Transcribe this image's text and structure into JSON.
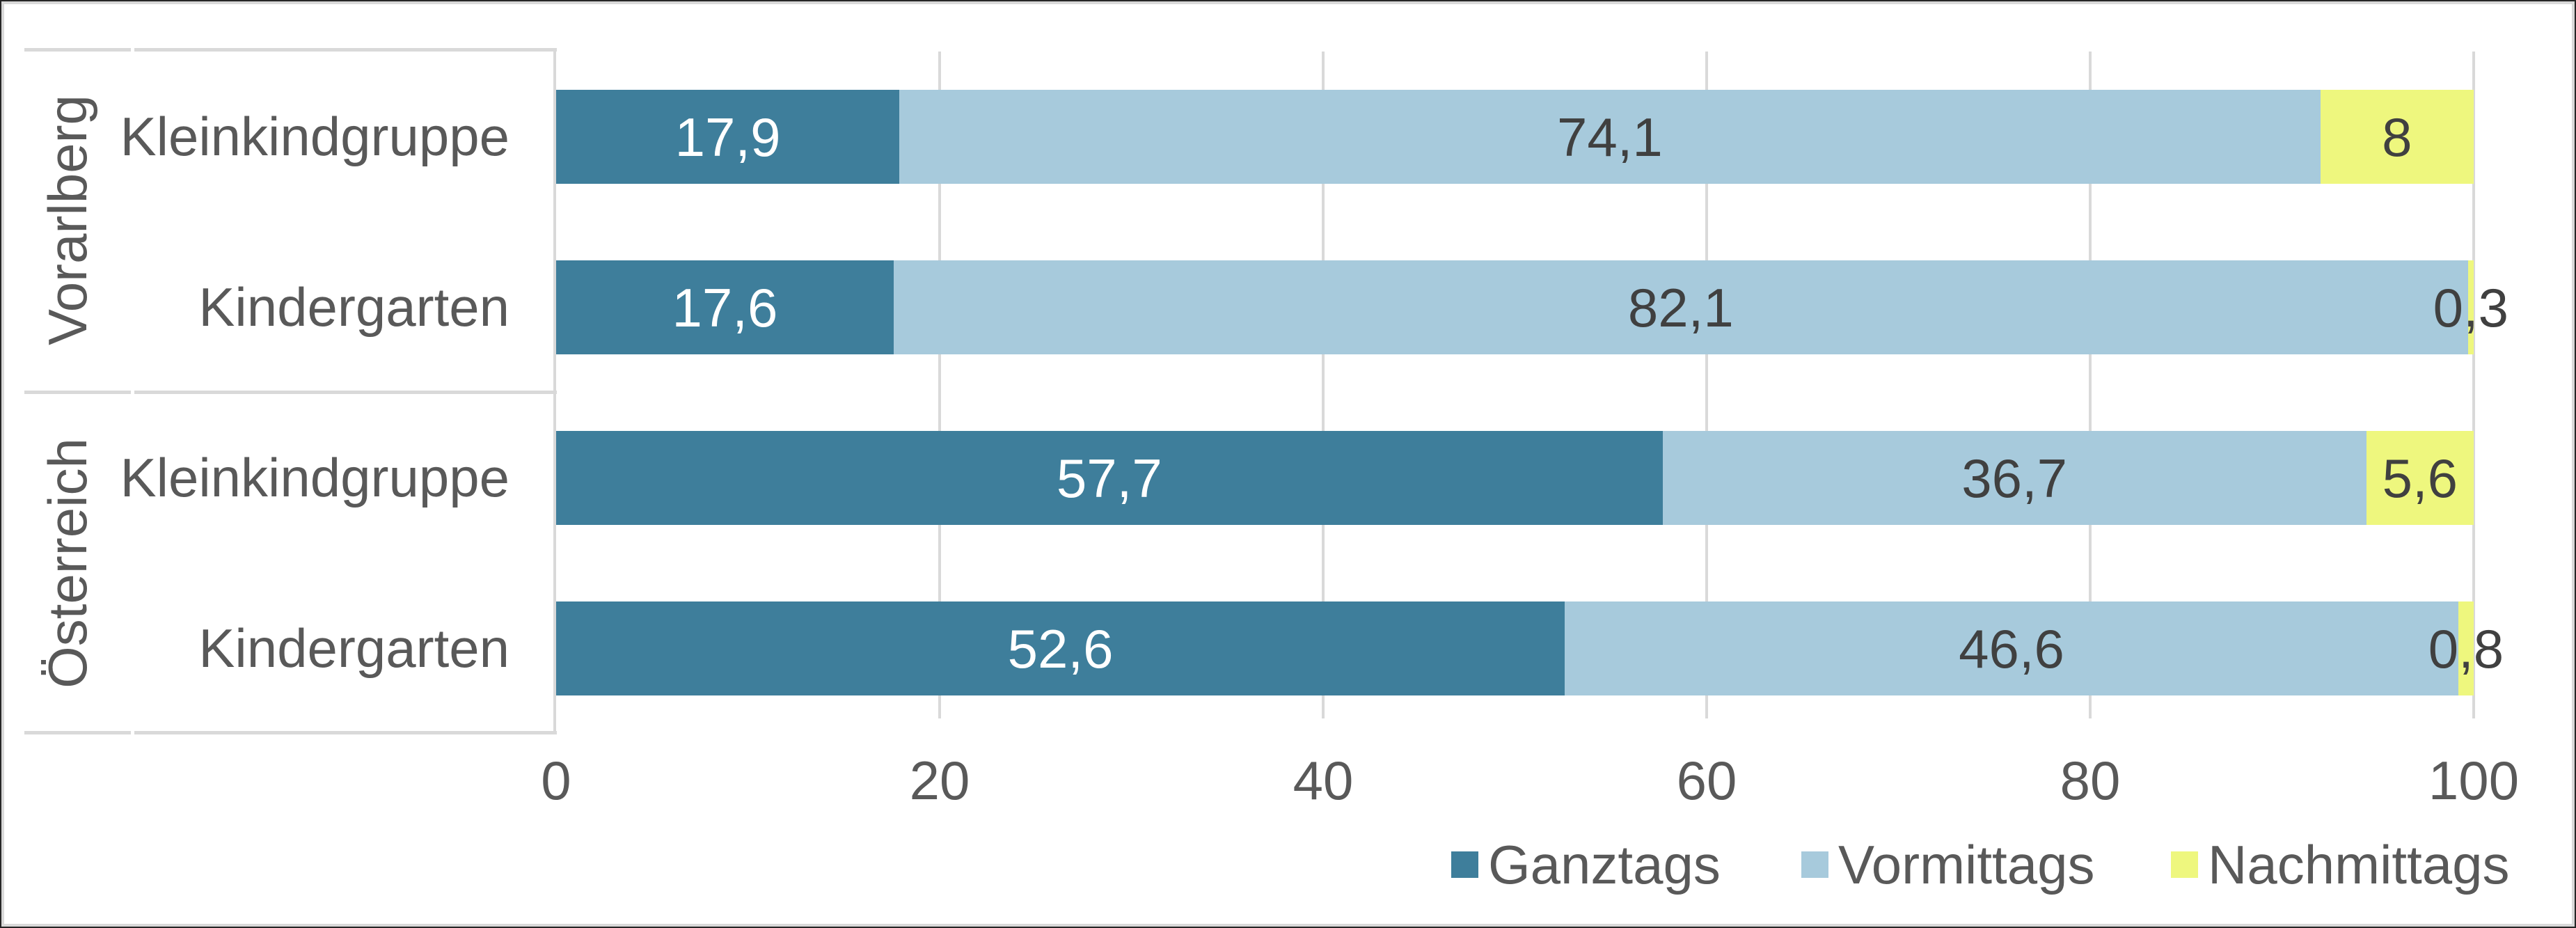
{
  "colors": {
    "ganztags": "#3E7E9B",
    "vormittags": "#A7CADC",
    "nachmittags": "#EEF77E",
    "gridline": "#D9D9D9",
    "axis_text": "#595959",
    "value_text_dark": "#404040",
    "value_text_light": "#FFFFFF",
    "chart_border": "#D9D9D9",
    "outer_frame": "#262626"
  },
  "chart_data": {
    "type": "bar",
    "orientation": "horizontal",
    "stacked": true,
    "title": "",
    "xlabel": "",
    "ylabel": "",
    "xlim": [
      0,
      100
    ],
    "x_ticks": [
      0,
      20,
      40,
      60,
      80,
      100
    ],
    "grid": "vertical",
    "legend_position": "bottom-right",
    "groups": [
      "Vorarlberg",
      "Österreich"
    ],
    "categories": [
      {
        "group": "Vorarlberg",
        "label": "Kleinkindgruppe"
      },
      {
        "group": "Vorarlberg",
        "label": "Kindergarten"
      },
      {
        "group": "Österreich",
        "label": "Kleinkindgruppe"
      },
      {
        "group": "Österreich",
        "label": "Kindergarten"
      }
    ],
    "series": [
      {
        "name": "Ganztags",
        "color": "#3E7E9B",
        "label_color": "#FFFFFF",
        "values": [
          17.9,
          17.6,
          57.7,
          52.6
        ],
        "value_labels": [
          "17,9",
          "17,6",
          "57,7",
          "52,6"
        ]
      },
      {
        "name": "Vormittags",
        "color": "#A7CADC",
        "label_color": "#404040",
        "values": [
          74.1,
          82.1,
          36.7,
          46.6
        ],
        "value_labels": [
          "74,1",
          "82,1",
          "36,7",
          "46,6"
        ]
      },
      {
        "name": "Nachmittags",
        "color": "#EEF77E",
        "label_color": "#404040",
        "values": [
          8,
          0.3,
          5.6,
          0.8
        ],
        "value_labels": [
          "8",
          "0,3",
          "5,6",
          "0,8"
        ]
      }
    ]
  },
  "legend": {
    "items": [
      {
        "label": "Ganztags",
        "color": "#3E7E9B"
      },
      {
        "label": "Vormittags",
        "color": "#A7CADC"
      },
      {
        "label": "Nachmittags",
        "color": "#EEF77E"
      }
    ]
  }
}
